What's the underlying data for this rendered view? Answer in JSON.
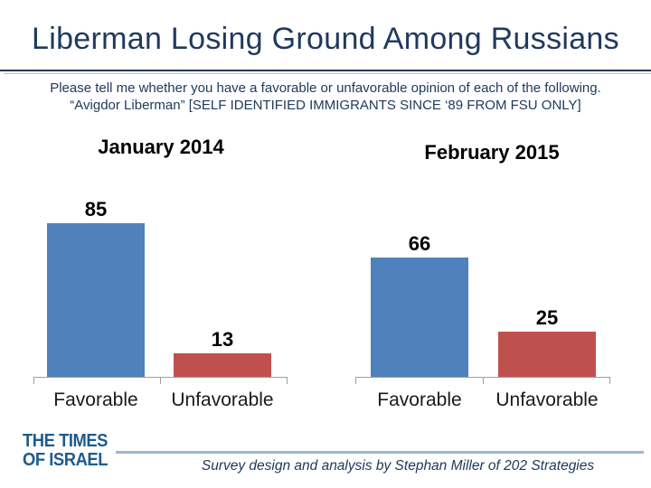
{
  "title": "Liberman Losing Ground Among Russians",
  "subtitle": {
    "line1": "Please tell me whether you have a favorable or unfavorable opinion of each of the following.",
    "line2": "“Avigdor Liberman” [SELF IDENTIFIED IMMIGRANTS SINCE ‘89 FROM FSU ONLY]"
  },
  "chart_data": [
    {
      "type": "bar",
      "title": "January 2014",
      "categories": [
        "Favorable",
        "Unfavorable"
      ],
      "values": [
        85,
        13
      ],
      "bar_colors": [
        "#4f81bd",
        "#c0504d"
      ],
      "data_labels": true,
      "y_axis_visible": false,
      "grid": false,
      "legend_position": "none"
    },
    {
      "type": "bar",
      "title": "February 2015",
      "categories": [
        "Favorable",
        "Unfavorable"
      ],
      "values": [
        66,
        25
      ],
      "bar_colors": [
        "#4f81bd",
        "#c0504d"
      ],
      "data_labels": true,
      "y_axis_visible": false,
      "grid": false,
      "legend_position": "none"
    }
  ],
  "footer": {
    "logo_line1": "THE TIMES",
    "logo_line2": "OF ISRAEL",
    "credit": "Survey design and analysis by Stephan Miller of 202 Strategies"
  },
  "colors": {
    "favorable_bar": "#4f81bd",
    "unfavorable_bar": "#c0504d",
    "title_navy": "#203a5c",
    "logo_blue": "#1e5b8d",
    "axis_gray": "#a0a0a0",
    "footer_rule_blue": "#9cb6d2"
  }
}
